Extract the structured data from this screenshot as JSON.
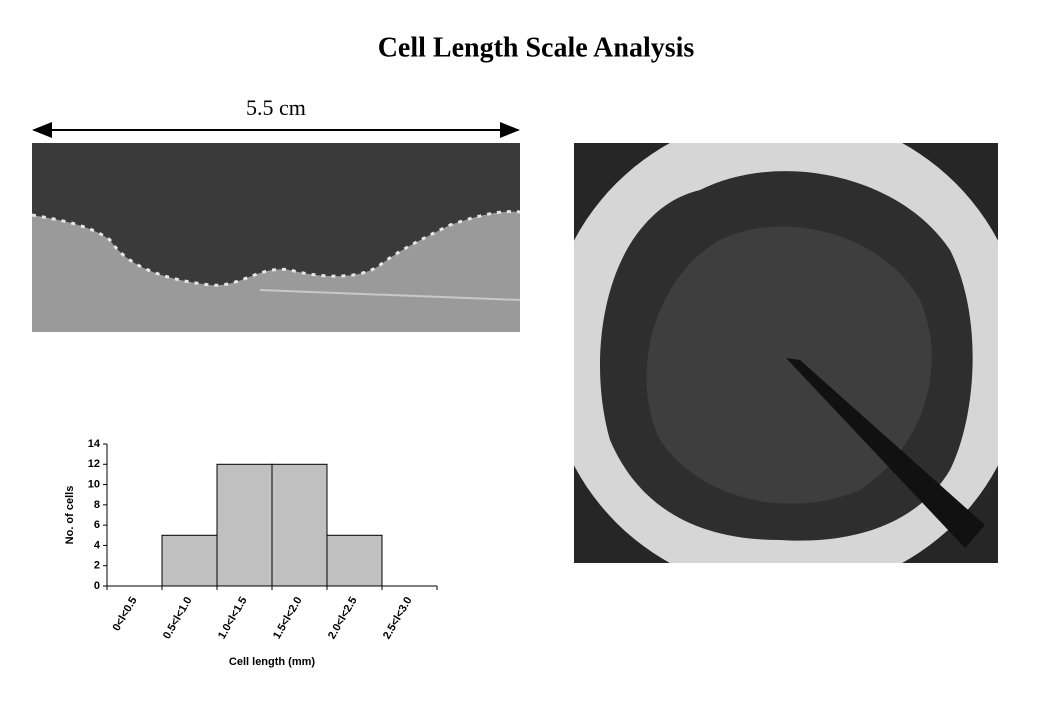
{
  "title": "Cell Length Scale Analysis",
  "scale_label": "5.5 cm",
  "chart_data": {
    "type": "bar",
    "categories": [
      "0<l<0.5",
      "0.5<l<1.0",
      "1.0<l<1.5",
      "1.5<l<2.0",
      "2.0<l<2.5",
      "2.5<l<3.0"
    ],
    "values": [
      0,
      5,
      12,
      12,
      5,
      0
    ],
    "color": "#c0c0c0",
    "xlabel": "Cell length (mm)",
    "ylabel": "No. of cells",
    "ylim": [
      0,
      14
    ],
    "yticks": [
      0,
      2,
      4,
      6,
      8,
      10,
      12,
      14
    ]
  }
}
